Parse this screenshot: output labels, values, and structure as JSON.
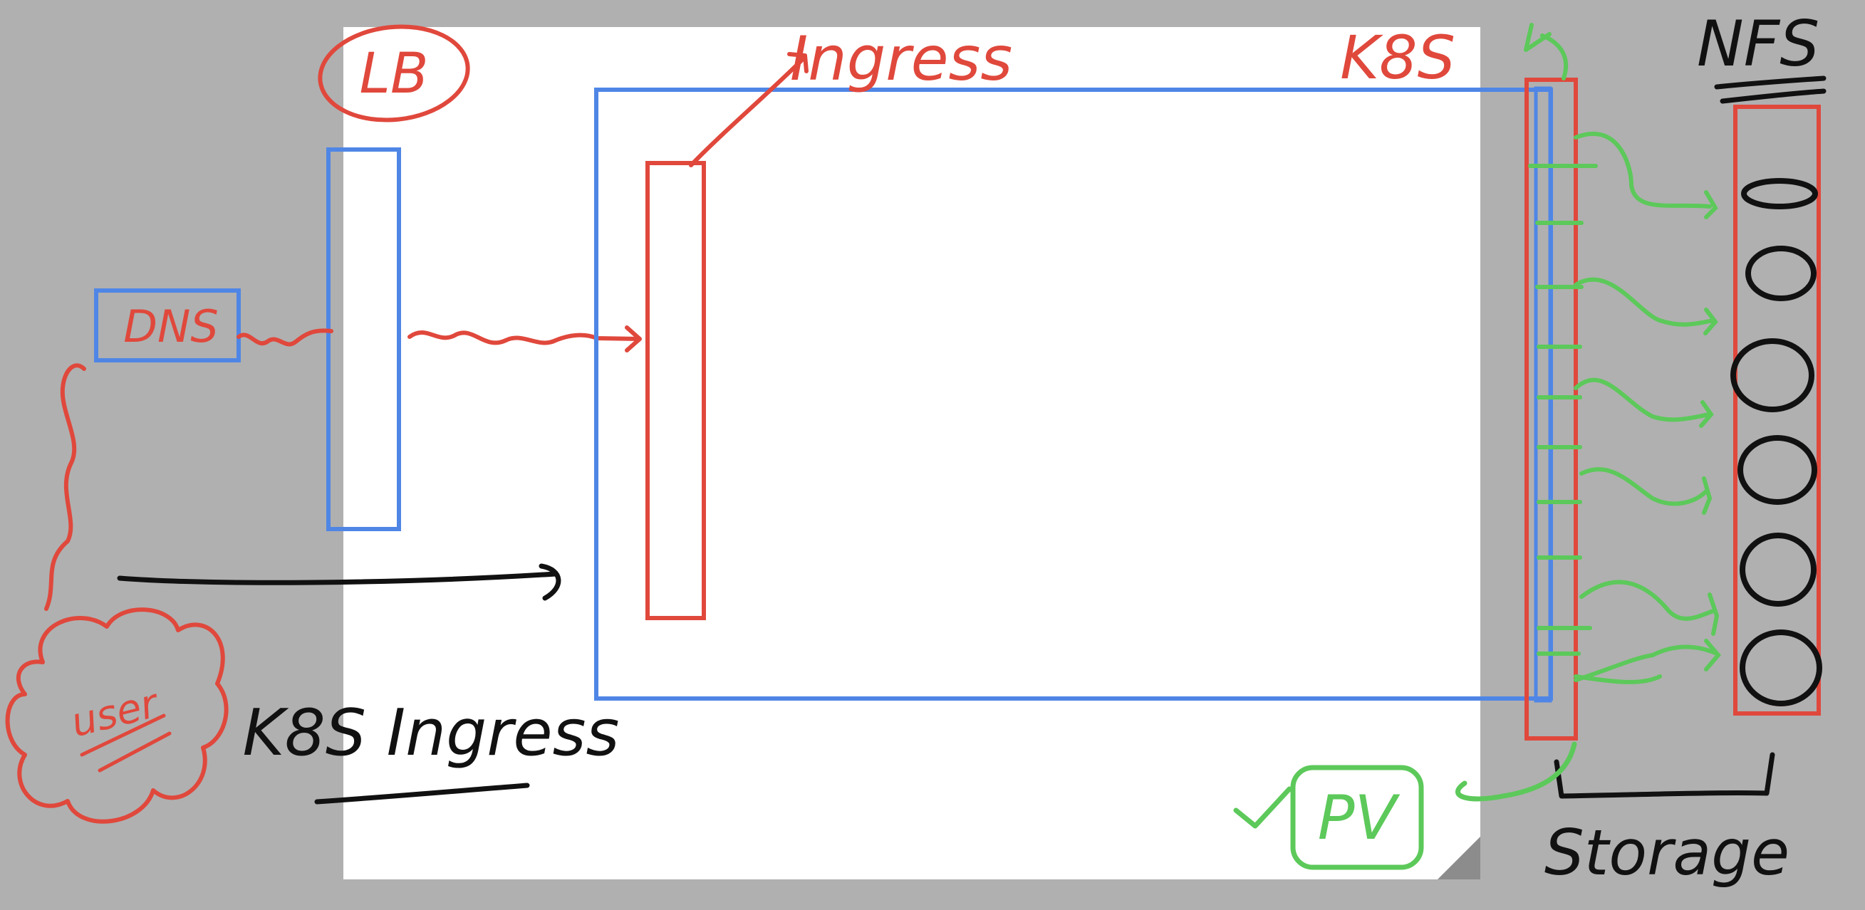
{
  "labels": {
    "lb": "LB",
    "ingress": "Ingress",
    "k8s": "K8S",
    "nfs": "NFS",
    "dns": "DNS",
    "user": "user",
    "k8s_ingress": "K8S Ingress",
    "pv": "PV",
    "storage": "Storage"
  },
  "colors": {
    "red": "#e0483c",
    "blue": "#4f86e6",
    "green": "#5cc95a",
    "black": "#111111",
    "canvas": "#ffffff",
    "backdrop": "#b0b0b0"
  }
}
